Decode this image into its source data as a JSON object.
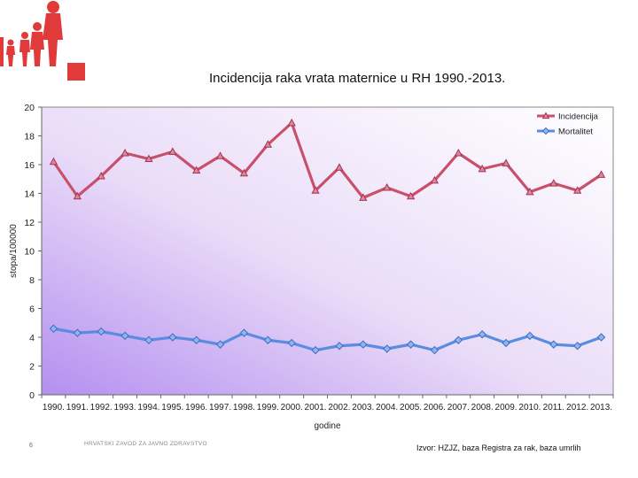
{
  "slide": {
    "page_number": "6",
    "organization": "HRVATSKI ZAVOD ZA JAVNO ZDRAVSTVO",
    "source": "Izvor: HZJZ, baza Registra za rak, baza umrlih",
    "accent_color": "#e03a3a"
  },
  "chart_data": {
    "type": "line",
    "title": "Incidencija raka vrata maternice u RH 1990.-2013.",
    "xlabel": "godine",
    "ylabel": "stopa/100000",
    "ylim": [
      0,
      20
    ],
    "yticks": [
      "0",
      "2",
      "4",
      "6",
      "8",
      "10",
      "12",
      "14",
      "16",
      "18",
      "20"
    ],
    "categories": [
      "1990.",
      "1991.",
      "1992.",
      "1993.",
      "1994.",
      "1995.",
      "1996.",
      "1997.",
      "1998.",
      "1999.",
      "2000.",
      "2001.",
      "2002.",
      "2003.",
      "2004.",
      "2005.",
      "2006.",
      "2007.",
      "2008.",
      "2009.",
      "2010.",
      "2011.",
      "2012.",
      "2013."
    ],
    "series": [
      {
        "name": "Incidencija",
        "color": "#c8506a",
        "marker": "triangle",
        "values": [
          16.2,
          13.8,
          15.2,
          16.8,
          16.4,
          16.9,
          15.6,
          16.6,
          15.4,
          17.4,
          18.9,
          14.2,
          15.8,
          13.7,
          14.4,
          13.8,
          14.9,
          16.8,
          15.7,
          16.1,
          14.1,
          14.7,
          14.2,
          15.3
        ]
      },
      {
        "name": "Mortalitet",
        "color": "#5a8de0",
        "marker": "diamond",
        "values": [
          4.6,
          4.3,
          4.4,
          4.1,
          3.8,
          4.0,
          3.8,
          3.5,
          4.3,
          3.8,
          3.6,
          3.1,
          3.4,
          3.5,
          3.2,
          3.5,
          3.1,
          3.8,
          4.2,
          3.6,
          4.1,
          3.5,
          3.4,
          4.0
        ]
      }
    ],
    "legend": "top-right",
    "background": "purple gradient fill"
  }
}
